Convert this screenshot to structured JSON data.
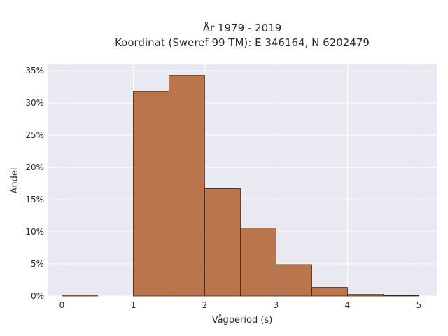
{
  "chart_data": {
    "type": "bar",
    "title_lines": [
      "År 1979 - 2019",
      "Koordinat (Sweref 99 TM): E 346164, N 6202479"
    ],
    "xlabel": "Vågperiod (s)",
    "ylabel": "Andel",
    "xlim": [
      -0.2,
      5.25
    ],
    "ylim": [
      0,
      0.36
    ],
    "xticks": [
      0,
      1,
      2,
      3,
      4,
      5
    ],
    "xtick_labels": [
      "0",
      "1",
      "2",
      "3",
      "4",
      "5"
    ],
    "yticks": [
      0,
      0.05,
      0.1,
      0.15,
      0.2,
      0.25,
      0.3,
      0.35
    ],
    "ytick_labels": [
      "0%",
      "5%",
      "10%",
      "15%",
      "20%",
      "25%",
      "30%",
      "35%"
    ],
    "grid": true,
    "bar_color": "#b5683b",
    "bar_edge_color": "#3a2418",
    "plot_background": "#e9e9f1",
    "bins": [
      {
        "x0": 0.0,
        "x1": 0.5,
        "value": 0.0015
      },
      {
        "x0": 0.5,
        "x1": 1.0,
        "value": 0.0
      },
      {
        "x0": 1.0,
        "x1": 1.5,
        "value": 0.318
      },
      {
        "x0": 1.5,
        "x1": 2.0,
        "value": 0.343
      },
      {
        "x0": 2.0,
        "x1": 2.5,
        "value": 0.167
      },
      {
        "x0": 2.5,
        "x1": 3.0,
        "value": 0.106
      },
      {
        "x0": 3.0,
        "x1": 3.5,
        "value": 0.049
      },
      {
        "x0": 3.5,
        "x1": 4.0,
        "value": 0.0135
      },
      {
        "x0": 4.0,
        "x1": 4.5,
        "value": 0.0025
      },
      {
        "x0": 4.5,
        "x1": 5.0,
        "value": 0.0008
      }
    ]
  }
}
